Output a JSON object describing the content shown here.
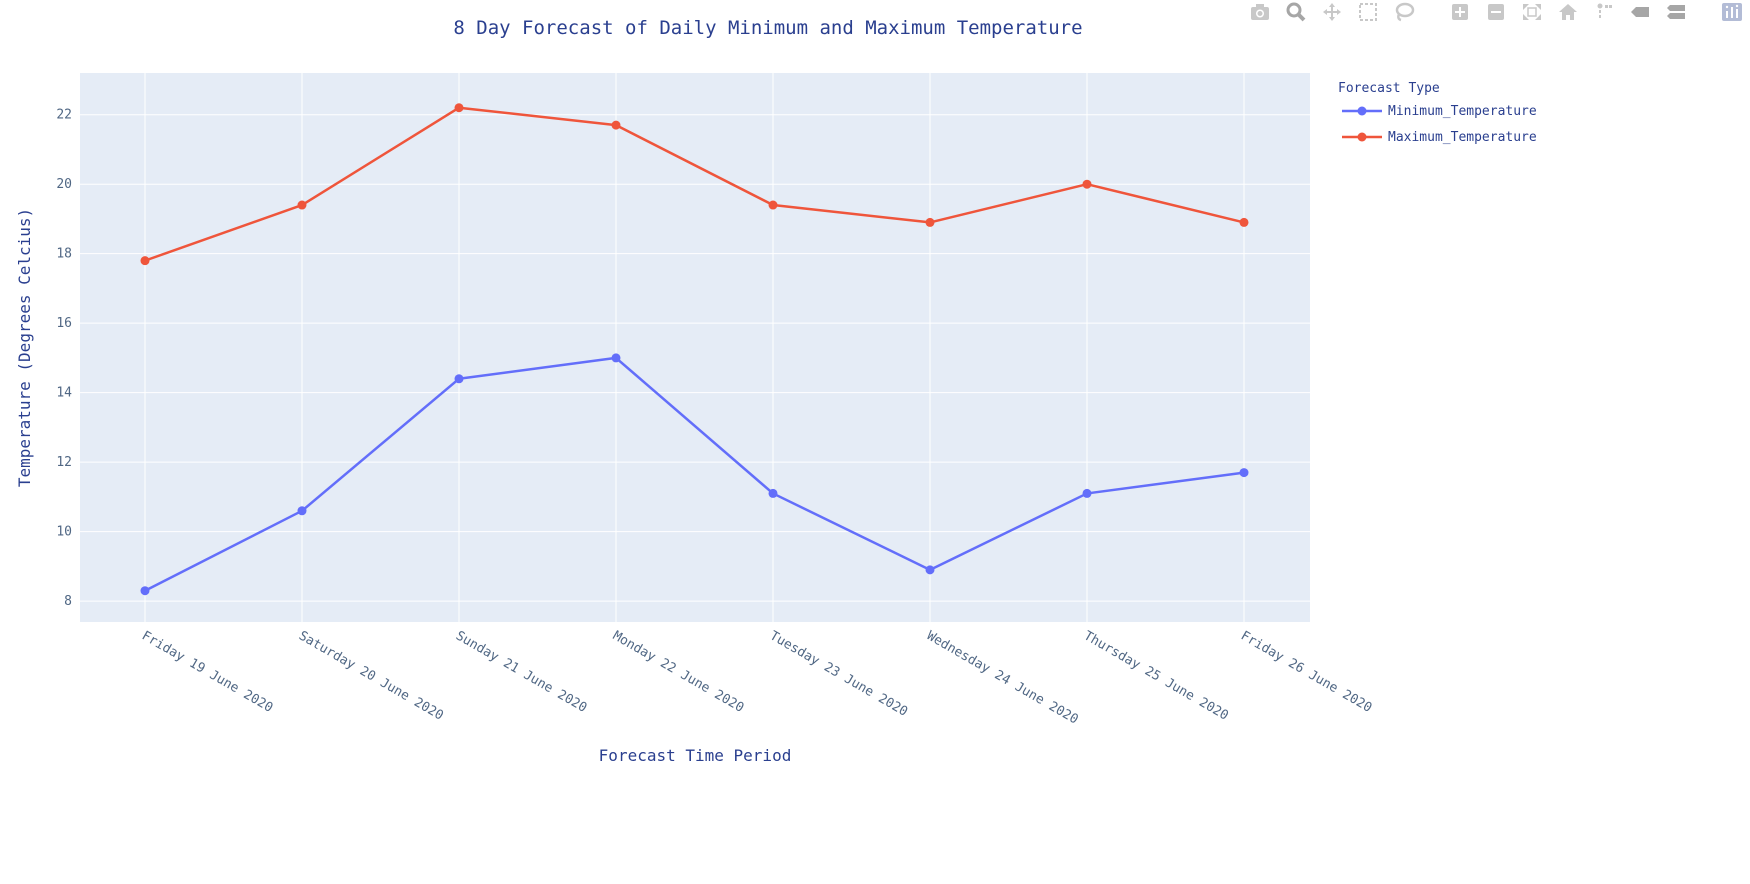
{
  "chart_data": {
    "type": "line",
    "title": "8 Day Forecast of Daily Minimum and Maximum Temperature",
    "xlabel": "Forecast Time Period",
    "ylabel": "Temperature (Degrees Celcius)",
    "categories": [
      "Friday 19 June 2020",
      "Saturday 20 June 2020",
      "Sunday 21 June 2020",
      "Monday 22 June 2020",
      "Tuesday 23 June 2020",
      "Wednesday 24 June 2020",
      "Thursday 25 June 2020",
      "Friday 26 June 2020"
    ],
    "ylim": [
      7.4,
      23.2
    ],
    "yticks": [
      8,
      10,
      12,
      14,
      16,
      18,
      20,
      22
    ],
    "grid": true,
    "legend_title": "Forecast Type",
    "legend_position": "top-right",
    "series": [
      {
        "name": "Minimum_Temperature",
        "color": "#636efa",
        "values": [
          8.3,
          10.6,
          14.4,
          15.0,
          11.1,
          8.9,
          11.1,
          11.7
        ]
      },
      {
        "name": "Maximum_Temperature",
        "color": "#ef553b",
        "values": [
          17.8,
          19.4,
          22.2,
          21.7,
          19.4,
          18.9,
          20.0,
          18.9
        ]
      }
    ]
  },
  "toolbar": {
    "icons": [
      "camera-icon",
      "zoom-icon",
      "pan-icon",
      "box-select-icon",
      "lasso-icon",
      "zoom-in-icon",
      "zoom-out-icon",
      "autoscale-icon",
      "home-icon",
      "spike-icon",
      "hover-closest-icon",
      "hover-compare-icon",
      "plotly-logo-icon"
    ],
    "color": "#c8c8c8"
  }
}
